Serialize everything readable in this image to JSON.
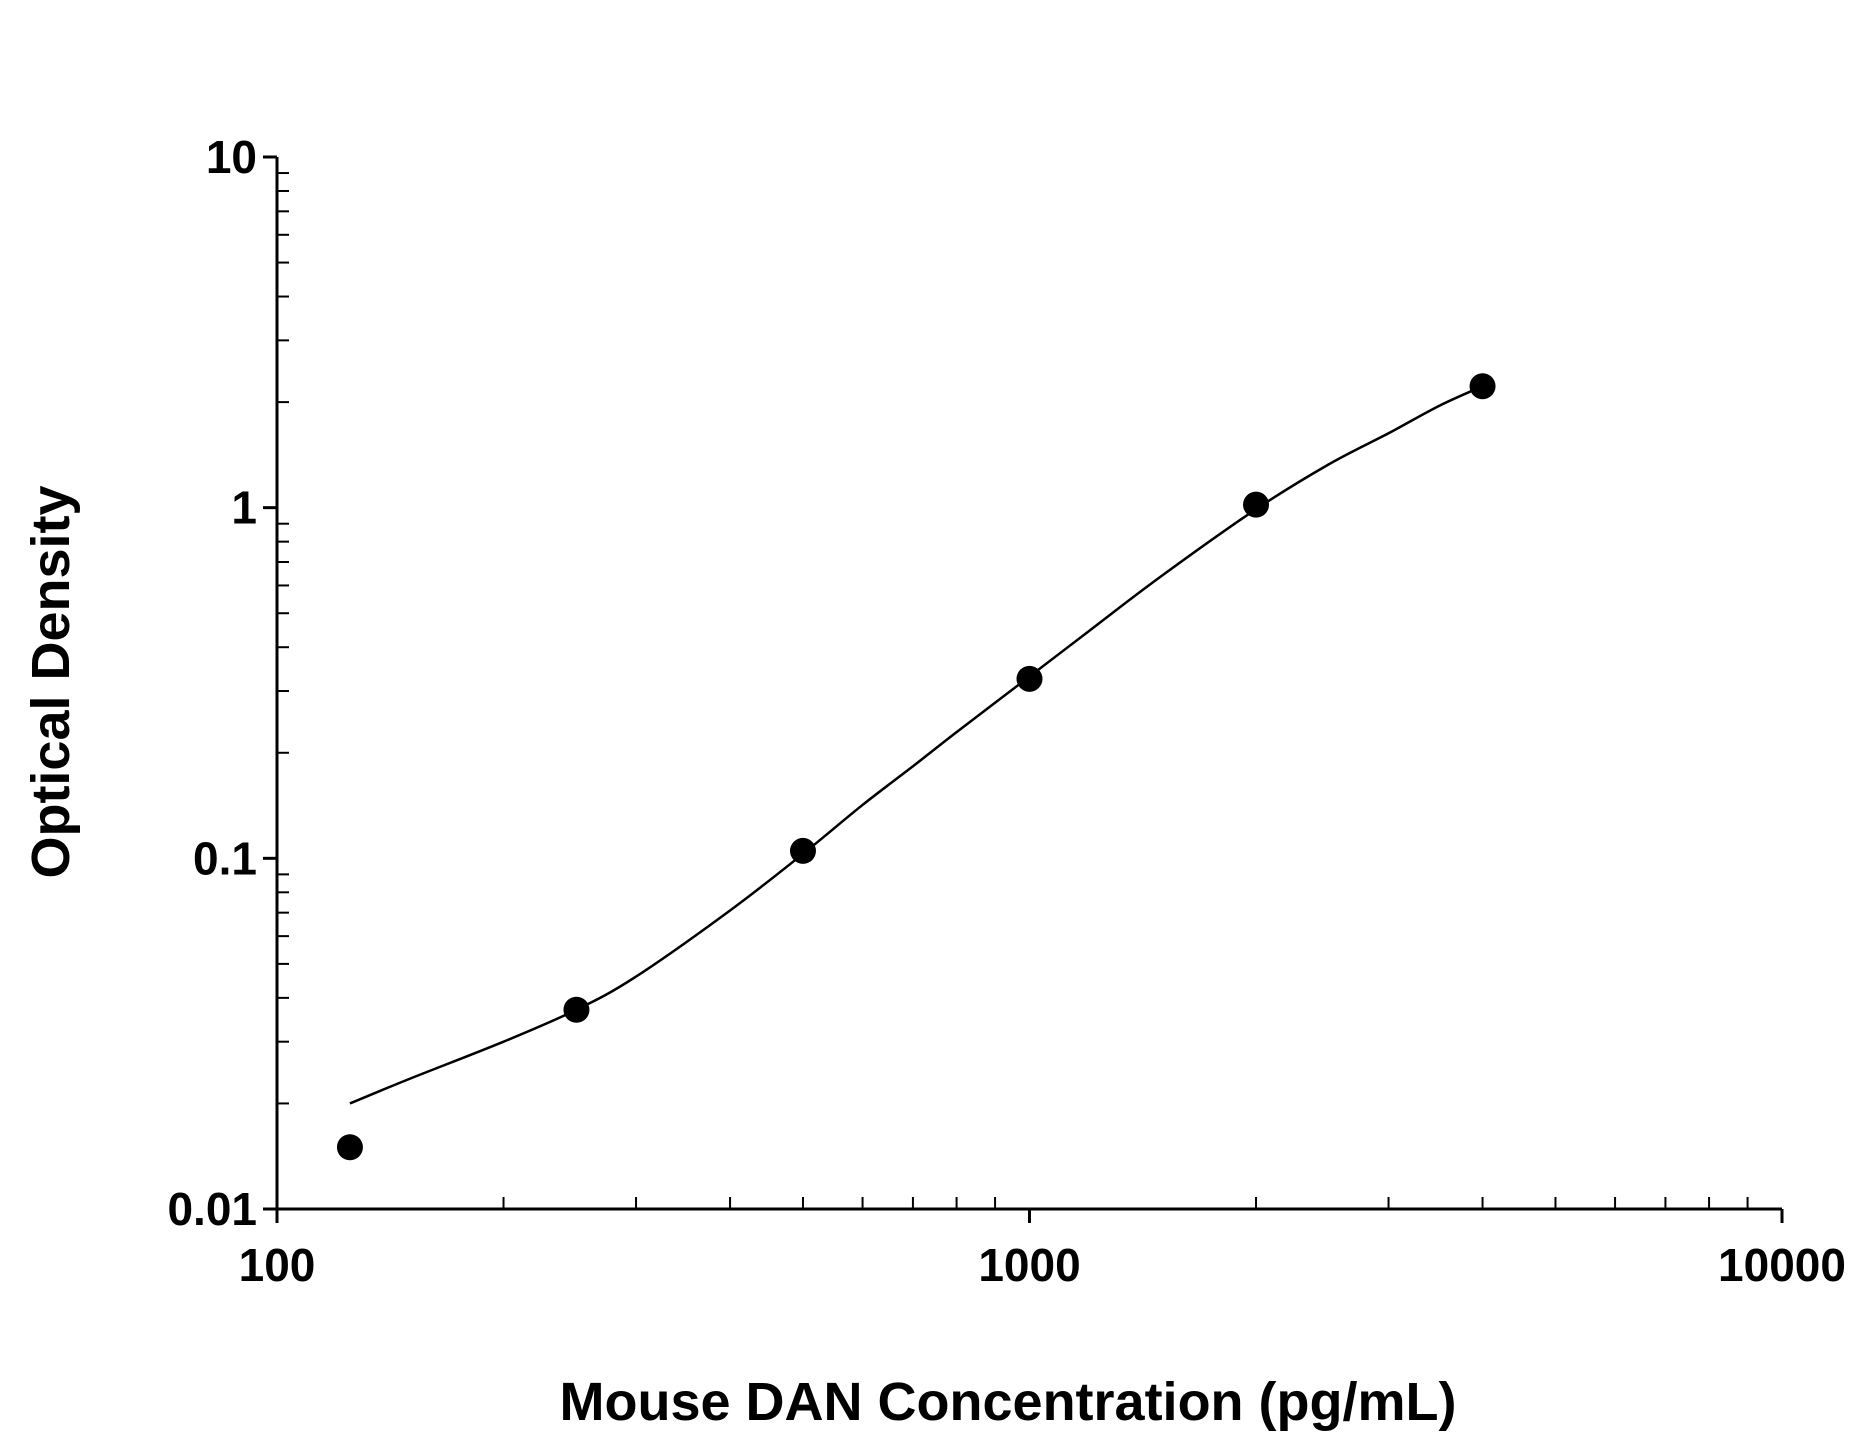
{
  "chart_data": {
    "type": "scatter",
    "title": "",
    "xlabel": "Mouse DAN Concentration (pg/mL)",
    "ylabel": "Optical Density",
    "x_scale": "log",
    "y_scale": "log",
    "xlim": [
      100,
      10000
    ],
    "ylim": [
      0.01,
      10
    ],
    "x_tick_values": [
      100,
      1000,
      10000
    ],
    "x_tick_labels": [
      "100",
      "1000",
      "10000"
    ],
    "y_tick_values": [
      0.01,
      0.1,
      1,
      10
    ],
    "y_tick_labels": [
      "0.01",
      "0.1",
      "1",
      "10"
    ],
    "grid": false,
    "legend": "none",
    "series": [
      {
        "type": "scatter",
        "x": [
          125,
          250,
          500,
          1000,
          2000,
          4000
        ],
        "y": [
          0.015,
          0.037,
          0.105,
          0.325,
          1.02,
          2.22
        ]
      },
      {
        "type": "line",
        "x": [
          125,
          150,
          200,
          250,
          300,
          400,
          500,
          600,
          700,
          800,
          1000,
          1200,
          1500,
          2000,
          2500,
          3000,
          3500,
          4000
        ],
        "y": [
          0.02,
          0.0235,
          0.03,
          0.037,
          0.046,
          0.071,
          0.103,
          0.142,
          0.183,
          0.229,
          0.33,
          0.445,
          0.64,
          0.99,
          1.33,
          1.63,
          1.95,
          2.22
        ]
      }
    ],
    "colors": {
      "marker": "#000000",
      "line": "#000000",
      "axis": "#000000"
    }
  }
}
